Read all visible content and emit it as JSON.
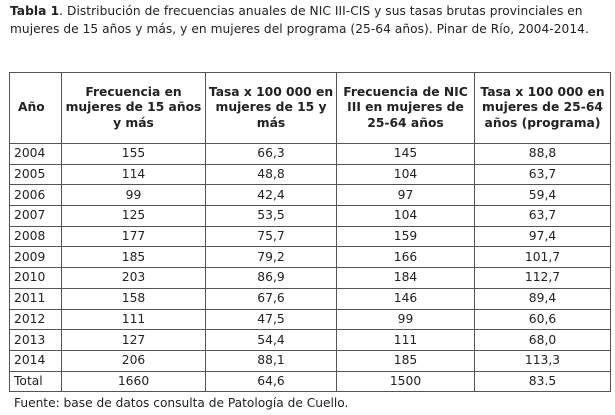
{
  "caption": {
    "label": "Tabla 1",
    "text": ". Distribución de frecuencias anuales de NIC III-CIS y sus tasas brutas provinciales en mujeres de 15 años y más, y en mujeres del programa (25-64 años). Pinar de Río, 2004-2014."
  },
  "table": {
    "headers": [
      "Año",
      "Frecuencia en mujeres de 15 años y más",
      "Tasa x 100 000 en mujeres de 15 y más",
      "Frecuencia de NIC III en mujeres de 25-64 años",
      "Tasa x 100 000 en mujeres de 25-64 años (programa)"
    ],
    "rows": [
      [
        "2004",
        "155",
        "66,3",
        "145",
        "88,8"
      ],
      [
        "2005",
        "114",
        "48,8",
        "104",
        "63,7"
      ],
      [
        "2006",
        "99",
        "42,4",
        "97",
        "59,4"
      ],
      [
        "2007",
        "125",
        "53,5",
        "104",
        "63,7"
      ],
      [
        "2008",
        "177",
        "75,7",
        "159",
        "97,4"
      ],
      [
        "2009",
        "185",
        "79,2",
        "166",
        "101,7"
      ],
      [
        "2010",
        "203",
        "86,9",
        "184",
        "112,7"
      ],
      [
        "2011",
        "158",
        "67,6",
        "146",
        "89,4"
      ],
      [
        "2012",
        "111",
        "47,5",
        "99",
        "60,6"
      ],
      [
        "2013",
        "127",
        "54,4",
        "111",
        "68,0"
      ],
      [
        "2014",
        "206",
        "88,1",
        "185",
        "113,3"
      ],
      [
        "Total",
        "1660",
        "64,6",
        "1500",
        "83.5"
      ]
    ]
  },
  "footnote": "Fuente: base de datos consulta de Patología de Cuello."
}
